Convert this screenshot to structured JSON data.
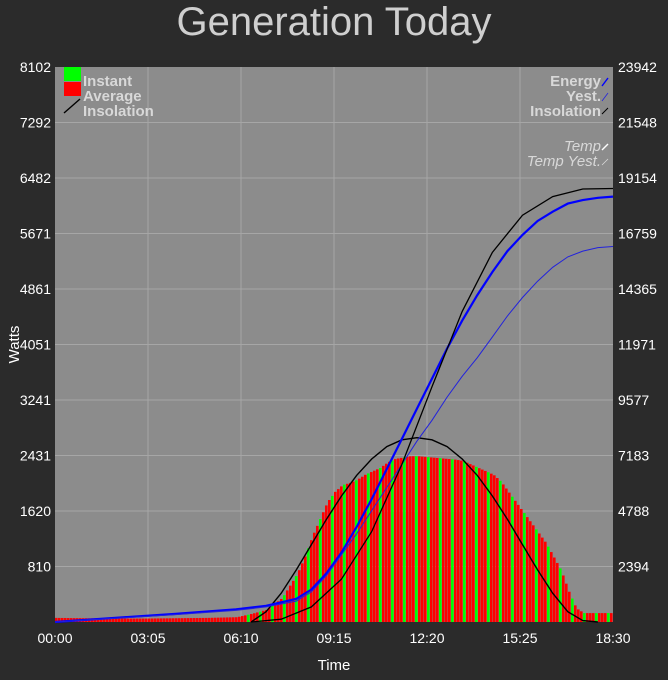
{
  "chart_data": {
    "type": "bar",
    "title": "Generation Today",
    "xlabel": "Time",
    "ylabel": "Watts",
    "x_ticks": [
      "00:00",
      "03:05",
      "06:10",
      "09:15",
      "12:20",
      "15:25",
      "18:30"
    ],
    "y_left_ticks": [
      "810",
      "1620",
      "2431",
      "3241",
      "4051",
      "4861",
      "5671",
      "6482",
      "7292",
      "8102"
    ],
    "y_right_ticks": [
      "2394",
      "4788",
      "7183",
      "9577",
      "11971",
      "14365",
      "16759",
      "19154",
      "21548",
      "23942"
    ],
    "x_range_hours": [
      0,
      18.5
    ],
    "y_left_range": [
      0,
      8102
    ],
    "y_right_range": [
      0,
      23942
    ],
    "grid": true,
    "legend_left": [
      "Instant",
      "Average",
      "Insolation"
    ],
    "legend_right": [
      "Energy",
      "Yest.",
      "Insolation",
      "Temp",
      "Temp Yest."
    ],
    "colors": {
      "instant": "#00ff00",
      "average": "#ff0000",
      "insolation": "#000000",
      "energy": "#0000ff",
      "yesterday": "#2222dd",
      "plot_bg": "#8c8c8c",
      "page_bg": "#2b2b2b"
    },
    "series": [
      {
        "name": "Average",
        "axis": "left",
        "x": [
          0,
          1,
          2,
          3,
          4,
          5,
          6,
          6.5,
          7,
          7.5,
          8,
          8.25,
          8.5,
          8.75,
          9,
          9.25,
          9.5,
          9.75,
          10,
          10.25,
          10.5,
          10.75,
          11,
          11.25,
          11.5,
          11.75,
          12,
          12.25,
          12.5,
          12.75,
          13,
          13.25,
          13.5,
          13.75,
          14,
          14.25,
          14.5,
          14.75,
          15,
          15.25,
          15.5,
          15.75,
          16,
          16.25,
          16.5,
          16.75,
          17,
          17.25,
          17.5,
          18,
          18.5
        ],
        "values": [
          60,
          55,
          50,
          50,
          55,
          60,
          70,
          120,
          180,
          350,
          700,
          950,
          1250,
          1500,
          1750,
          1900,
          2000,
          2030,
          2080,
          2150,
          2200,
          2250,
          2330,
          2380,
          2400,
          2420,
          2420,
          2410,
          2400,
          2390,
          2380,
          2370,
          2350,
          2300,
          2250,
          2200,
          2150,
          2050,
          1900,
          1750,
          1600,
          1450,
          1300,
          1150,
          950,
          750,
          450,
          200,
          130,
          130,
          130
        ]
      },
      {
        "name": "Insolation",
        "axis": "left",
        "x": [
          6.5,
          7,
          7.5,
          8,
          8.5,
          9,
          9.5,
          10,
          10.5,
          11,
          11.5,
          12,
          12.5,
          13,
          13.5,
          14,
          14.5,
          15,
          15.5,
          16,
          16.5,
          17,
          17.5,
          18
        ],
        "values": [
          0,
          150,
          420,
          760,
          1130,
          1500,
          1840,
          2140,
          2380,
          2560,
          2660,
          2690,
          2660,
          2560,
          2380,
          2140,
          1840,
          1500,
          1130,
          760,
          420,
          150,
          20,
          0
        ]
      },
      {
        "name": "Energy",
        "axis": "right",
        "x": [
          0,
          2,
          4,
          6,
          7,
          8,
          8.5,
          9,
          9.5,
          10,
          10.5,
          11,
          11.5,
          12,
          12.5,
          13,
          13.5,
          14,
          14.5,
          15,
          15.5,
          16,
          16.5,
          17,
          17.5,
          18,
          18.5
        ],
        "values": [
          0,
          180,
          350,
          550,
          700,
          1000,
          1400,
          2100,
          3000,
          4100,
          5300,
          6600,
          7900,
          9200,
          10500,
          11800,
          13000,
          14100,
          15100,
          16000,
          16700,
          17300,
          17700,
          18050,
          18200,
          18300,
          18350
        ]
      },
      {
        "name": "Yest.",
        "axis": "right",
        "x": [
          0,
          2,
          4,
          6,
          7,
          8,
          8.5,
          9,
          9.5,
          10,
          10.5,
          11,
          11.5,
          12,
          12.5,
          13,
          13.5,
          14,
          14.5,
          15,
          15.5,
          16,
          16.5,
          17,
          17.5,
          18,
          18.5
        ],
        "values": [
          0,
          160,
          320,
          500,
          650,
          900,
          1300,
          2000,
          2900,
          3800,
          4800,
          5800,
          6800,
          7800,
          8700,
          9700,
          10600,
          11400,
          12300,
          13200,
          14000,
          14700,
          15300,
          15750,
          16000,
          16150,
          16200
        ]
      },
      {
        "name": "Insolation",
        "axis": "right",
        "x": [
          6.5,
          7.5,
          8.5,
          9.5,
          10.5,
          11.5,
          12.5,
          13.5,
          14.5,
          15.5,
          16.5,
          17.5,
          18.5
        ],
        "values": [
          0,
          120,
          650,
          1850,
          3900,
          6800,
          10150,
          13400,
          15950,
          17550,
          18350,
          18680,
          18700
        ]
      }
    ]
  }
}
